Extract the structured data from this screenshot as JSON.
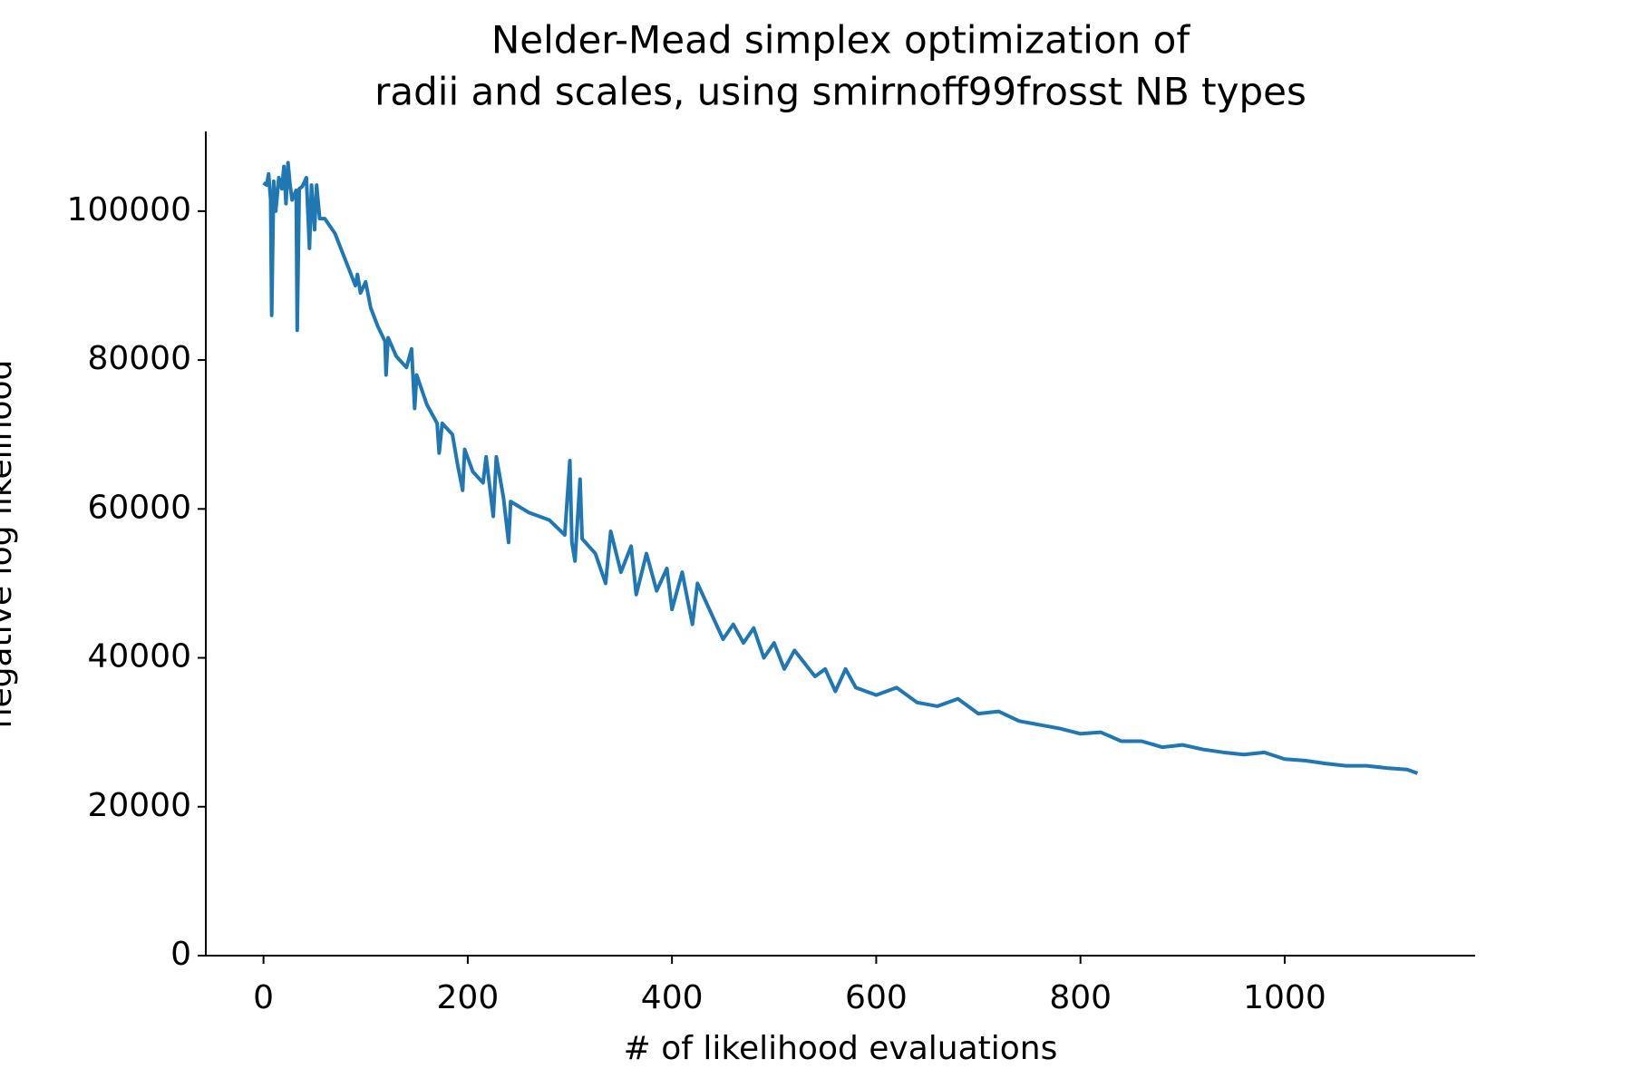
{
  "chart_data": {
    "type": "line",
    "title": [
      "Nelder-Mead simplex optimization of",
      "radii and scales, using smirnoff99frosst NB types"
    ],
    "x_label": "# of likelihood evaluations",
    "y_label": "negative log likelihood",
    "x": [
      0,
      3,
      5,
      7,
      8,
      10,
      12,
      15,
      18,
      20,
      22,
      24,
      26,
      28,
      32,
      33,
      35,
      38,
      42,
      45,
      47,
      50,
      52,
      55,
      60,
      70,
      80,
      90,
      92,
      95,
      100,
      105,
      112,
      119,
      120,
      122,
      130,
      140,
      145,
      148,
      150,
      160,
      170,
      172,
      175,
      185,
      190,
      195,
      197,
      205,
      215,
      218,
      225,
      228,
      235,
      240,
      242,
      260,
      280,
      295,
      300,
      302,
      305,
      310,
      312,
      325,
      335,
      340,
      350,
      360,
      365,
      375,
      385,
      395,
      400,
      410,
      420,
      425,
      440,
      450,
      460,
      470,
      480,
      490,
      500,
      510,
      520,
      540,
      550,
      560,
      570,
      580,
      600,
      620,
      640,
      660,
      680,
      700,
      720,
      740,
      760,
      780,
      800,
      820,
      840,
      860,
      880,
      900,
      920,
      940,
      960,
      980,
      1000,
      1020,
      1040,
      1060,
      1080,
      1100,
      1120,
      1130
    ],
    "series": [
      {
        "name": "negative log likelihood",
        "color": "#1f77b4",
        "values": [
          103800,
          103500,
          105000,
          101500,
          86000,
          104000,
          100000,
          104500,
          103000,
          106000,
          101000,
          106500,
          103500,
          101500,
          102800,
          84000,
          103000,
          103300,
          104500,
          95000,
          103500,
          97500,
          103500,
          99000,
          99000,
          97000,
          93500,
          90000,
          91500,
          89000,
          90500,
          87000,
          84500,
          82500,
          78000,
          83000,
          80500,
          79000,
          81500,
          73500,
          78000,
          74000,
          71500,
          67500,
          71500,
          70000,
          66000,
          62500,
          68000,
          65000,
          63500,
          67000,
          59000,
          67000,
          61500,
          55500,
          61000,
          59500,
          58500,
          56500,
          66500,
          55500,
          53000,
          64000,
          56000,
          54000,
          50000,
          57000,
          51500,
          55000,
          48500,
          54000,
          49000,
          52000,
          46500,
          51500,
          44500,
          50000,
          45500,
          42500,
          44500,
          42000,
          44000,
          40000,
          42000,
          38500,
          41000,
          37500,
          38500,
          35500,
          38500,
          36000,
          35000,
          36000,
          34000,
          33500,
          34500,
          32500,
          32800,
          31500,
          31000,
          30500,
          29800,
          30000,
          28800,
          28800,
          28000,
          28300,
          27700,
          27300,
          27000,
          27300,
          26400,
          26200,
          25800,
          25500,
          25500,
          25200,
          25000,
          24500
        ]
      }
    ],
    "xlim": [
      -56.5,
      1186.5
    ],
    "ylim": [
      0,
      110700
    ],
    "xticks": [
      0,
      200,
      400,
      600,
      800,
      1000
    ],
    "yticks": [
      0,
      20000,
      40000,
      60000,
      80000,
      100000
    ],
    "grid": false
  }
}
